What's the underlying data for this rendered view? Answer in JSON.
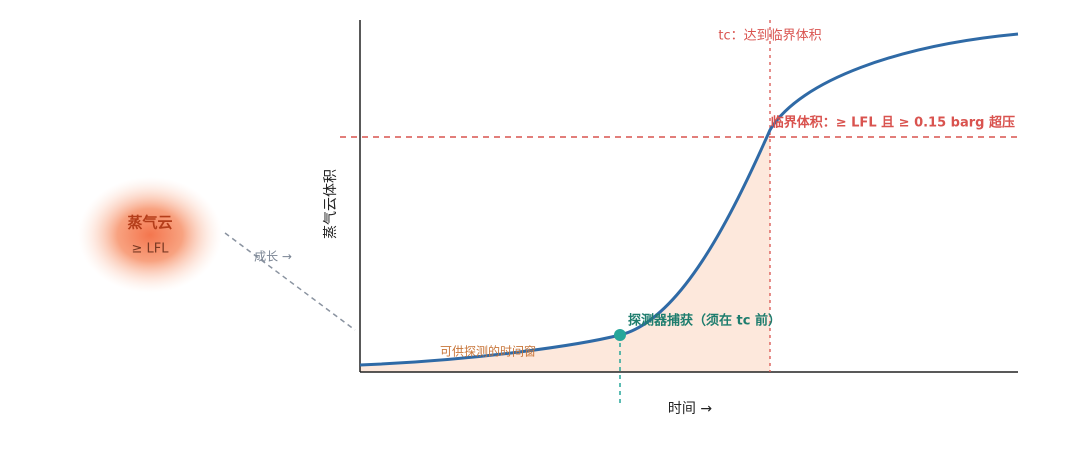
{
  "annotations": {
    "tc_label": "tc：达到临界体积",
    "critical_label": "临界体积：≥ LFL 且 ≥ 0.15 barg 超压",
    "detect_label": "探测器捕获（须在 tc 前）",
    "window_label": "可供探测的时间窗"
  },
  "axes": {
    "y_label": "蒸气云体积",
    "x_label": "时间 →"
  },
  "cloud": {
    "title": "蒸气云",
    "subtitle": "≥ LFL",
    "growth_label": "成长 →"
  }
}
